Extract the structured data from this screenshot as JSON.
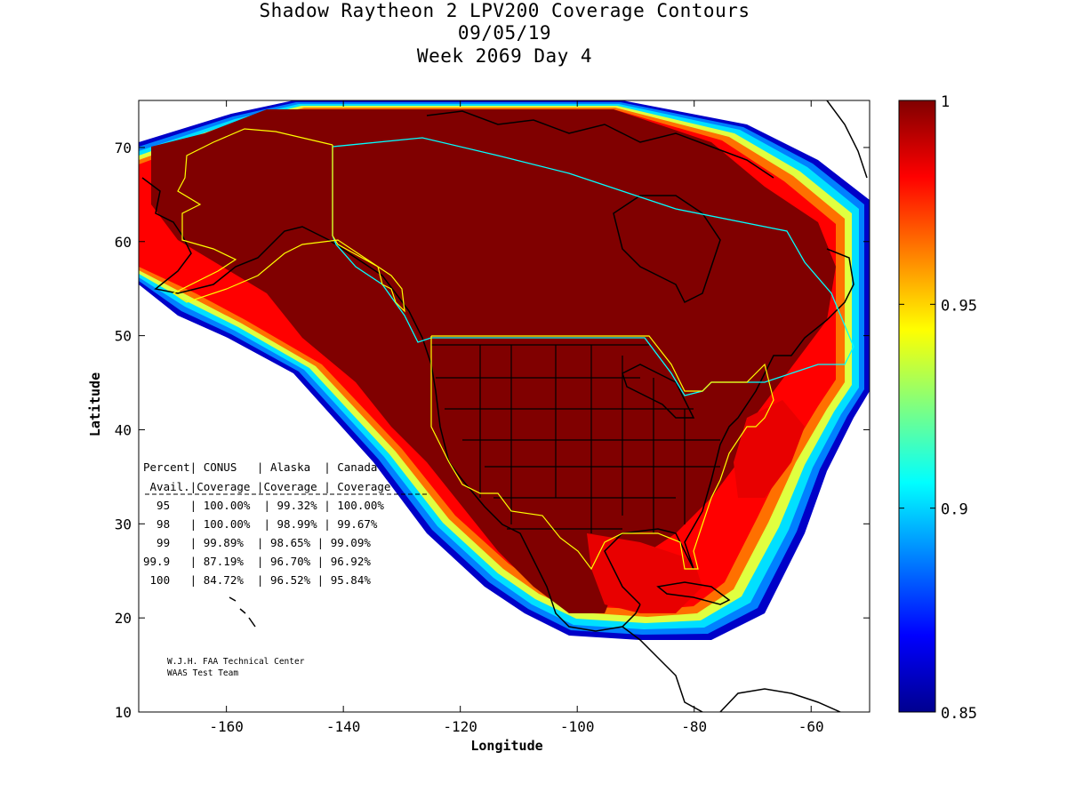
{
  "title": {
    "line1": "Shadow Raytheon 2 LPV200 Coverage Contours",
    "line2": "09/05/19",
    "line3": "Week 2069 Day 4"
  },
  "axes": {
    "xlabel": "Longitude",
    "ylabel": "Latitude",
    "x_range": [
      -175,
      -50
    ],
    "y_range": [
      10,
      75
    ],
    "x_ticks": [
      -160,
      -140,
      -120,
      -100,
      -80,
      -60
    ],
    "y_ticks": [
      10,
      20,
      30,
      40,
      50,
      60,
      70
    ]
  },
  "colorbar": {
    "min": 0.85,
    "max": 1,
    "ticks": [
      "1",
      "0.95",
      "0.9",
      "0.85"
    ],
    "colormap": "jet"
  },
  "table": {
    "header1": "Percent| CONUS   | Alaska  | Canada",
    "header2": " Avail.|Coverage |Coverage | Coverage",
    "rows": [
      "  95   | 100.00%  | 99.32% | 100.00%",
      "  98   | 100.00%  | 98.99% | 99.67%",
      "  99   | 99.89%  | 98.65% | 99.09%",
      "99.9   | 87.19%  | 96.70% | 96.92%",
      " 100   | 84.72%  | 96.52% | 95.84%"
    ]
  },
  "credits": {
    "line1": "W.J.H. FAA Technical Center",
    "line2": "WAAS Test Team"
  },
  "colors": {
    "coverage_full": "#800000",
    "conus_outline": "#ffff00",
    "canada_outline": "#00ffff",
    "land_outline": "#000000"
  }
}
